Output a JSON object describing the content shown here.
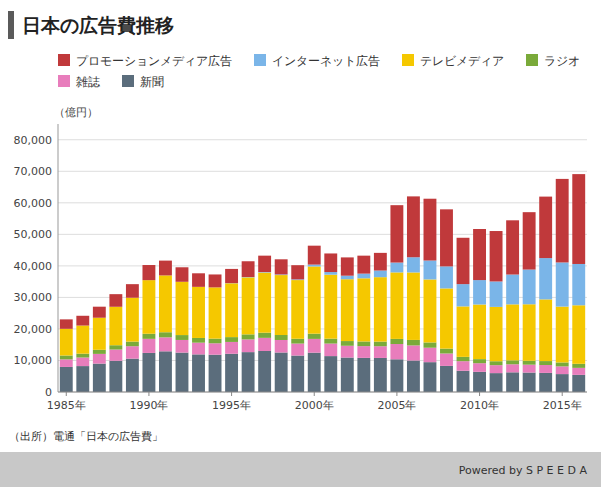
{
  "chart_data": {
    "type": "bar",
    "stacked": true,
    "title": "日本の広告費推移",
    "ylabel": "（億円）",
    "annotations": [
      "（出所）電通「日本の広告費」",
      "Powered by  S P E E D A"
    ],
    "categories": [
      "1985年",
      null,
      null,
      null,
      null,
      "1990年",
      null,
      null,
      null,
      null,
      "1995年",
      null,
      null,
      null,
      null,
      "2000年",
      null,
      null,
      null,
      null,
      "2005年",
      null,
      null,
      null,
      null,
      "2010年",
      null,
      null,
      null,
      null,
      "2015年",
      null
    ],
    "series": [
      {
        "name": "新聞",
        "color": "#5b6d7c",
        "values": [
          7947,
          8220,
          9003,
          9898,
          10590,
          12390,
          12905,
          12498,
          11929,
          11827,
          12123,
          12647,
          13007,
          12530,
          11562,
          12474,
          11388,
          10933,
          10823,
          10801,
          10377,
          9986,
          9462,
          8276,
          6739,
          6396,
          5990,
          6242,
          6170,
          6057,
          5679,
          5431
        ]
      },
      {
        "name": "雑誌",
        "color": "#e87dbc",
        "values": [
          2401,
          2716,
          3084,
          3570,
          3932,
          4471,
          4427,
          4012,
          3716,
          3621,
          3757,
          4030,
          4167,
          3969,
          3797,
          4369,
          3973,
          3733,
          3723,
          3709,
          4842,
          4784,
          4585,
          3934,
          3034,
          2733,
          2519,
          2551,
          2499,
          2499,
          2443,
          2223
        ]
      },
      {
        "name": "ラジオ",
        "color": "#7aaa3a",
        "values": [
          1229,
          1224,
          1299,
          1364,
          1460,
          1613,
          1619,
          1548,
          1496,
          1480,
          1529,
          1605,
          1635,
          1580,
          1529,
          1654,
          1555,
          1493,
          1479,
          1473,
          1623,
          1744,
          1671,
          1549,
          1370,
          1299,
          1247,
          1246,
          1243,
          1253,
          1254,
          1285
        ]
      },
      {
        "name": "テレビメディア",
        "color": "#f5c800",
        "values": [
          8460,
          8916,
          10172,
          12200,
          13922,
          17000,
          18023,
          16900,
          16208,
          16252,
          17068,
          18076,
          19076,
          19008,
          18611,
          21322,
          20294,
          19612,
          20036,
          20436,
          21090,
          21401,
          19981,
          19092,
          16005,
          17321,
          17237,
          17757,
          17913,
          19564,
          17711,
          18567
        ]
      },
      {
        "name": "インターネット広告",
        "color": "#7ab5e8",
        "values": [
          0,
          0,
          0,
          0,
          0,
          0,
          0,
          0,
          0,
          0,
          60,
          110,
          160,
          200,
          220,
          590,
          830,
          1118,
          1483,
          2108,
          3122,
          4826,
          6003,
          6983,
          7069,
          7747,
          8062,
          9460,
          11010,
          13100,
          14000,
          13100
        ]
      },
      {
        "name": "プロモーションメディア広告",
        "color": "#c0393b",
        "values": [
          3000,
          3100,
          3500,
          4000,
          4300,
          4800,
          4700,
          4600,
          4300,
          4100,
          4500,
          5000,
          5200,
          4800,
          4500,
          6000,
          5900,
          5800,
          5700,
          5600,
          18200,
          19300,
          19600,
          18100,
          14700,
          16200,
          16000,
          17200,
          18200,
          19500,
          26500,
          28500
        ]
      }
    ],
    "ylim": [
      0,
      85000
    ],
    "yticks": [
      0,
      {
        "value": 10000,
        "label": "10,000"
      },
      {
        "value": 20000,
        "label": "20,000"
      },
      {
        "value": 30000,
        "label": "30,000"
      },
      {
        "value": 40000,
        "label": "40,000"
      },
      {
        "value": 50000,
        "label": "50,000"
      },
      {
        "value": 60000,
        "label": "60,000"
      },
      {
        "value": 70000,
        "label": "70,000"
      },
      {
        "value": 80000,
        "label": "80,000"
      }
    ],
    "grid": true,
    "legend": "top"
  }
}
